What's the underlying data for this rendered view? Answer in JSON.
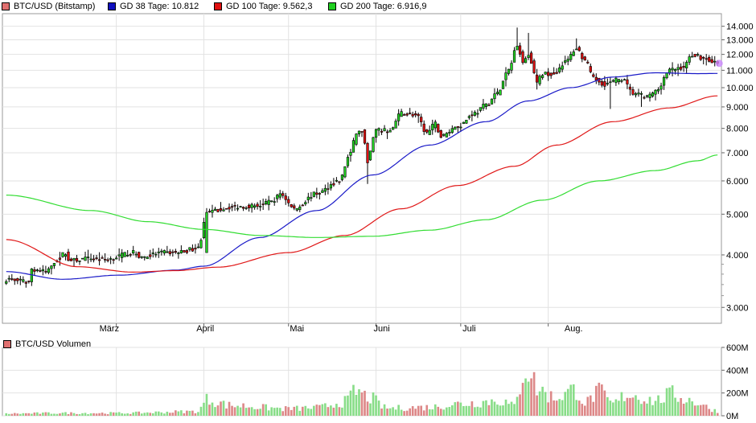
{
  "legend": {
    "items": [
      {
        "label": "BTC/USD (Bitstamp)",
        "color": "#e07070"
      },
      {
        "label": "GD 38 Tage: 10.812",
        "color": "#1010c0"
      },
      {
        "label": "GD 100 Tage: 9.562,3",
        "color": "#e01010"
      },
      {
        "label": "GD 200 Tage: 6.916,9",
        "color": "#20d020"
      }
    ]
  },
  "volume_legend": {
    "label": "BTC/USD Volumen",
    "color": "#e07070"
  },
  "colors": {
    "up": "#22d022",
    "down": "#e01010",
    "outline": "#000000",
    "sma38": "#1a1ac8",
    "sma100": "#e01818",
    "sma200": "#33dd33",
    "vol_up": "#88dd88",
    "vol_down": "#dd8888",
    "grid": "#e2e2e2",
    "marker": "#cc88ff"
  },
  "chart_data": [
    {
      "type": "candlestick",
      "title": "BTC/USD (Bitstamp)",
      "y_scale": "log",
      "ylim": [
        2750,
        15000
      ],
      "yticks": [
        "14.000",
        "13.000",
        "12.000",
        "11.000",
        "10.000",
        "9.000",
        "8.000",
        "7.000",
        "6.000",
        "5.000",
        "4.000",
        "3.000"
      ],
      "ytick_values": [
        14000,
        13000,
        12000,
        11000,
        10000,
        9000,
        8000,
        7000,
        6000,
        5000,
        4000,
        3000
      ],
      "xticks": [
        "März",
        "April",
        "Mai",
        "Juni",
        "Juli",
        "Aug."
      ],
      "close_anchors": [
        [
          0,
          3500
        ],
        [
          8,
          3450
        ],
        [
          9,
          3700
        ],
        [
          14,
          3650
        ],
        [
          18,
          3900
        ],
        [
          21,
          4050
        ],
        [
          22,
          3880
        ],
        [
          30,
          3920
        ],
        [
          35,
          3900
        ],
        [
          45,
          4050
        ],
        [
          48,
          3950
        ],
        [
          55,
          4050
        ],
        [
          60,
          4050
        ],
        [
          68,
          4150
        ],
        [
          71,
          5050
        ],
        [
          80,
          5200
        ],
        [
          90,
          5250
        ],
        [
          95,
          5400
        ],
        [
          97,
          5600
        ],
        [
          102,
          5150
        ],
        [
          110,
          5600
        ],
        [
          118,
          6000
        ],
        [
          122,
          7000
        ],
        [
          124,
          7800
        ],
        [
          126,
          7900
        ],
        [
          128,
          6700
        ],
        [
          131,
          7900
        ],
        [
          136,
          7900
        ],
        [
          140,
          8700
        ],
        [
          145,
          8600
        ],
        [
          149,
          7800
        ],
        [
          152,
          8200
        ],
        [
          154,
          7650
        ],
        [
          160,
          8100
        ],
        [
          166,
          8700
        ],
        [
          170,
          9100
        ],
        [
          174,
          9700
        ],
        [
          178,
          11000
        ],
        [
          181,
          12700
        ],
        [
          183,
          11500
        ],
        [
          185,
          12000
        ],
        [
          188,
          10300
        ],
        [
          190,
          10800
        ],
        [
          194,
          10800
        ],
        [
          198,
          11500
        ],
        [
          202,
          12400
        ],
        [
          205,
          11600
        ],
        [
          208,
          10500
        ],
        [
          212,
          10200
        ],
        [
          218,
          10500
        ],
        [
          222,
          9700
        ],
        [
          227,
          9500
        ],
        [
          230,
          9800
        ],
        [
          235,
          11000
        ],
        [
          240,
          11200
        ],
        [
          243,
          12000
        ],
        [
          248,
          11700
        ],
        [
          252,
          11400
        ]
      ],
      "series": [
        {
          "name": "GD 38 Tage",
          "current": 10812,
          "anchors": [
            [
              0,
              3650
            ],
            [
              20,
              3500
            ],
            [
              40,
              3580
            ],
            [
              60,
              3680
            ],
            [
              70,
              3760
            ],
            [
              90,
              4400
            ],
            [
              110,
              5100
            ],
            [
              130,
              6200
            ],
            [
              150,
              7300
            ],
            [
              170,
              8300
            ],
            [
              185,
              9300
            ],
            [
              200,
              10000
            ],
            [
              215,
              10600
            ],
            [
              230,
              10850
            ],
            [
              245,
              10800
            ],
            [
              252,
              10812
            ]
          ]
        },
        {
          "name": "GD 100 Tage",
          "current": 9562.3,
          "anchors": [
            [
              0,
              4350
            ],
            [
              25,
              3750
            ],
            [
              45,
              3640
            ],
            [
              60,
              3670
            ],
            [
              75,
              3740
            ],
            [
              100,
              4050
            ],
            [
              120,
              4450
            ],
            [
              140,
              5150
            ],
            [
              160,
              5850
            ],
            [
              180,
              6500
            ],
            [
              195,
              7300
            ],
            [
              215,
              8300
            ],
            [
              235,
              8950
            ],
            [
              252,
              9562
            ]
          ]
        },
        {
          "name": "GD 200 Tage",
          "current": 6916.9,
          "anchors": [
            [
              0,
              5550
            ],
            [
              30,
              5100
            ],
            [
              50,
              4800
            ],
            [
              70,
              4600
            ],
            [
              90,
              4450
            ],
            [
              110,
              4400
            ],
            [
              130,
              4430
            ],
            [
              150,
              4580
            ],
            [
              170,
              4850
            ],
            [
              190,
              5400
            ],
            [
              210,
              6000
            ],
            [
              230,
              6350
            ],
            [
              245,
              6700
            ],
            [
              252,
              6917
            ]
          ]
        }
      ]
    },
    {
      "type": "bar",
      "title": "BTC/USD Volumen",
      "ylim": [
        0,
        600
      ],
      "yticks": [
        "600M",
        "400M",
        "200M",
        "0M"
      ],
      "ytick_values": [
        600,
        400,
        200,
        0
      ],
      "unit": "M",
      "peaks": [
        [
          0,
          20
        ],
        [
          20,
          25
        ],
        [
          40,
          25
        ],
        [
          68,
          40
        ],
        [
          71,
          150
        ],
        [
          80,
          95
        ],
        [
          100,
          65
        ],
        [
          110,
          75
        ],
        [
          120,
          130
        ],
        [
          124,
          225
        ],
        [
          128,
          175
        ],
        [
          135,
          70
        ],
        [
          150,
          80
        ],
        [
          160,
          110
        ],
        [
          175,
          140
        ],
        [
          180,
          90
        ],
        [
          184,
          460
        ],
        [
          186,
          380
        ],
        [
          188,
          250
        ],
        [
          194,
          170
        ],
        [
          202,
          240
        ],
        [
          205,
          120
        ],
        [
          210,
          220
        ],
        [
          215,
          110
        ],
        [
          220,
          200
        ],
        [
          230,
          140
        ],
        [
          236,
          200
        ],
        [
          240,
          160
        ],
        [
          245,
          120
        ],
        [
          250,
          60
        ],
        [
          252,
          40
        ]
      ]
    }
  ]
}
